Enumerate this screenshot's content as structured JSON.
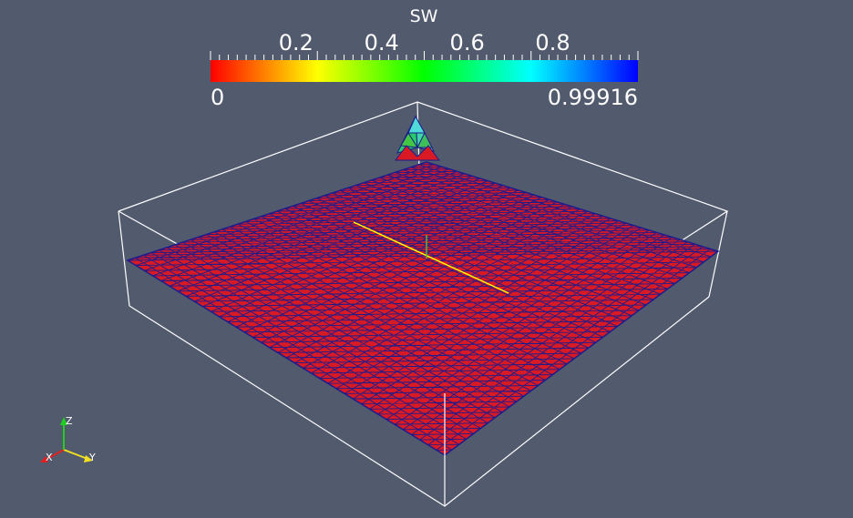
{
  "scalar_bar": {
    "title": "SW",
    "range_min": "0",
    "range_max": "0.99916",
    "tick_labels": [
      "0.2",
      "0.4",
      "0.6",
      "0.8"
    ],
    "tick_values": [
      0.2,
      0.4,
      0.6,
      0.8
    ],
    "range": [
      0,
      0.99916
    ],
    "colormap": [
      "#ff0000",
      "#ff8000",
      "#ffff00",
      "#80ff00",
      "#00ff00",
      "#00ff80",
      "#00ffff",
      "#0080ff",
      "#0000ff"
    ]
  },
  "mesh": {
    "surface_color": "#d91a24",
    "edge_color": "#1c1c8c"
  },
  "outline": {
    "color": "#ffffff"
  },
  "orientation_axes": {
    "x_label": "X",
    "y_label": "Y",
    "z_label": "Z",
    "x_color": "#e02020",
    "y_color": "#f0e020",
    "z_color": "#20d020"
  },
  "center_axes": {
    "long_color": "#ffff00",
    "short_color": "#40c040"
  }
}
